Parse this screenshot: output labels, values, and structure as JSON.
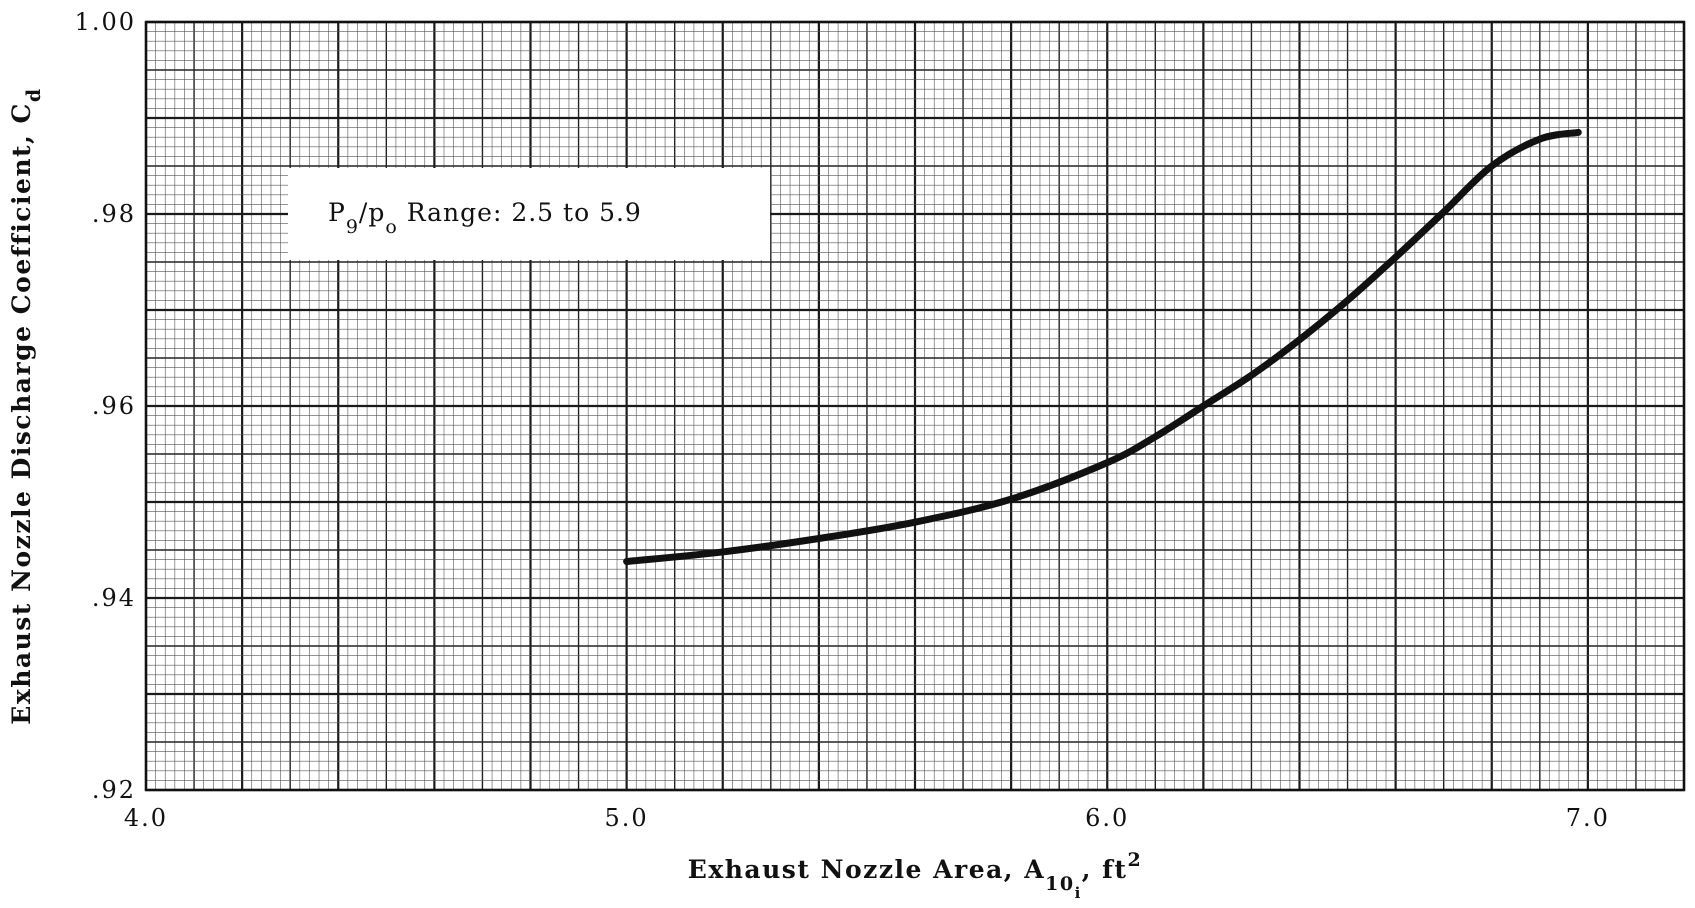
{
  "chart_data": {
    "type": "line",
    "title": "",
    "xlabel": {
      "main": "Exhaust Nozzle Area, A",
      "subscript": "10",
      "sub_subscript": "i",
      "suffix": ", ft",
      "superscript": "2"
    },
    "ylabel": {
      "main": "Exhaust Nozzle Discharge Coefficient, C",
      "subscript": "d"
    },
    "xlim": [
      4.0,
      7.2
    ],
    "ylim": [
      0.92,
      1.0
    ],
    "x_ticks": [
      {
        "value": 4.0,
        "label": "4.0"
      },
      {
        "value": 5.0,
        "label": "5.0"
      },
      {
        "value": 6.0,
        "label": "6.0"
      },
      {
        "value": 7.0,
        "label": "7.0"
      }
    ],
    "y_ticks": [
      {
        "value": 0.92,
        "label": ".92"
      },
      {
        "value": 0.94,
        "label": ".94"
      },
      {
        "value": 0.96,
        "label": ".96"
      },
      {
        "value": 0.98,
        "label": ".98"
      },
      {
        "value": 1.0,
        "label": "1.00"
      }
    ],
    "grid": true,
    "legend": "none",
    "annotation": {
      "p": "P",
      "p_sub": "9",
      "slash": "/p",
      "o_sub": "o",
      "text": " Range:  2.5 to 5.9"
    },
    "series": [
      {
        "x": [
          5.0,
          5.2,
          5.4,
          5.6,
          5.8,
          6.0,
          6.1,
          6.2,
          6.3,
          6.4,
          6.5,
          6.6,
          6.7,
          6.8,
          6.9,
          6.98
        ],
        "y": [
          0.9438,
          0.9448,
          0.9462,
          0.9479,
          0.9503,
          0.9541,
          0.9568,
          0.96,
          0.9632,
          0.9669,
          0.971,
          0.9755,
          0.9802,
          0.985,
          0.9878,
          0.9885
        ]
      }
    ],
    "colors": {
      "line": "#111111",
      "grid_major": "#1a1a1a",
      "grid_minor": "#444444"
    }
  }
}
